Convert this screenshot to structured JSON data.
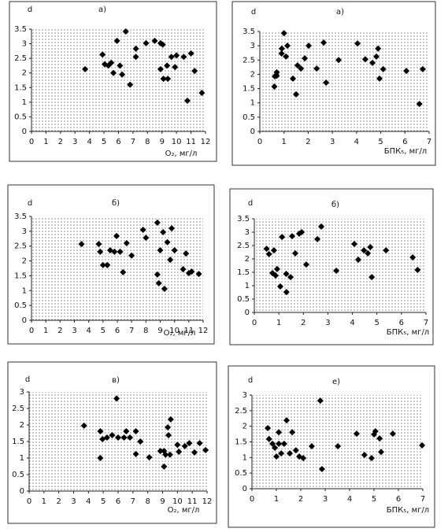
{
  "chart_data": [
    {
      "type": "scatter",
      "title": "а)",
      "ylabel": "d",
      "xlabel": "O₂, мг/л",
      "color": "#000000",
      "x": [
        3.7,
        4.9,
        5.05,
        5.3,
        5.5,
        5.65,
        5.9,
        6.1,
        6.25,
        6.5,
        6.8,
        7.2,
        7.2,
        7.9,
        8.5,
        8.9,
        9.05,
        8.9,
        9.1,
        9.4,
        9.35,
        9.65,
        9.9,
        10.0,
        10.5,
        11.0,
        11.25,
        10.75,
        11.75
      ],
      "values": [
        2.13,
        2.63,
        2.3,
        2.25,
        2.35,
        2.0,
        3.1,
        2.25,
        1.95,
        3.42,
        1.6,
        2.83,
        2.55,
        3.02,
        3.1,
        3.02,
        2.97,
        2.13,
        1.8,
        1.8,
        2.25,
        2.55,
        2.2,
        2.6,
        2.55,
        2.67,
        2.07,
        1.05,
        1.32
      ],
      "xlim": [
        0,
        12
      ],
      "ylim": [
        0,
        3.5
      ],
      "xticks": [
        0,
        1,
        2,
        3,
        4,
        5,
        6,
        7,
        8,
        9,
        10,
        11,
        12
      ],
      "yticks": [
        0,
        0.5,
        1,
        1.5,
        2,
        2.5,
        3,
        3.5
      ]
    },
    {
      "type": "scatter",
      "title": "а)",
      "ylabel": "d",
      "xlabel": "БПК₅, мг/л",
      "color": "#000000",
      "x": [
        0.6,
        0.62,
        0.7,
        0.7,
        0.9,
        0.91,
        1.0,
        1.08,
        1.14,
        1.37,
        1.5,
        1.56,
        1.7,
        1.86,
        2.02,
        2.35,
        2.64,
        2.74,
        3.26,
        4.04,
        4.36,
        4.66,
        4.82,
        4.89,
        4.95,
        5.1,
        6.06,
        6.6,
        6.74
      ],
      "values": [
        1.57,
        1.93,
        2.07,
        1.95,
        2.73,
        2.9,
        3.44,
        2.62,
        3.0,
        1.85,
        1.3,
        2.31,
        2.2,
        2.56,
        3.0,
        2.2,
        3.11,
        1.71,
        2.5,
        3.08,
        2.53,
        2.4,
        2.62,
        2.9,
        1.85,
        2.18,
        2.12,
        0.96,
        2.18
      ],
      "xlim": [
        0,
        7
      ],
      "ylim": [
        0,
        3.5
      ],
      "xticks": [
        0,
        1,
        2,
        3,
        4,
        5,
        6,
        7
      ],
      "yticks": [
        0,
        0.5,
        1,
        1.5,
        2,
        2.5,
        3,
        3.5
      ]
    },
    {
      "type": "scatter",
      "title": "б)",
      "ylabel": "d",
      "xlabel": "O₂, мг/л",
      "color": "#000000",
      "x": [
        3.5,
        4.7,
        4.8,
        5.0,
        5.3,
        5.5,
        5.8,
        5.95,
        6.2,
        6.4,
        6.65,
        7.0,
        7.8,
        8.0,
        8.8,
        8.8,
        8.9,
        9.3,
        9.0,
        9.2,
        9.5,
        9.8,
        9.7,
        10.0,
        10.6,
        10.8,
        11.0,
        11.2,
        11.7
      ],
      "values": [
        2.57,
        2.57,
        2.31,
        1.86,
        1.86,
        2.36,
        2.31,
        2.84,
        2.31,
        1.62,
        2.6,
        2.18,
        3.05,
        2.78,
        3.29,
        1.54,
        1.25,
        1.06,
        2.36,
        2.97,
        2.63,
        3.1,
        2.04,
        2.36,
        1.72,
        2.25,
        1.59,
        1.64,
        1.56
      ],
      "xlim": [
        0,
        12
      ],
      "ylim": [
        0,
        3.5
      ],
      "xticks": [
        0,
        1,
        2,
        3,
        4,
        5,
        6,
        7,
        8,
        9,
        10,
        11,
        12
      ],
      "yticks": [
        0,
        0.5,
        1,
        1.5,
        2,
        2.5,
        3,
        3.5
      ]
    },
    {
      "type": "scatter",
      "title": "б)",
      "ylabel": "d",
      "xlabel": "БПК₅, мг/л",
      "color": "#000000",
      "x": [
        0.5,
        0.6,
        0.74,
        0.8,
        0.87,
        0.93,
        1.06,
        1.13,
        1.3,
        1.31,
        1.48,
        1.54,
        1.67,
        1.83,
        1.93,
        2.12,
        2.57,
        2.73,
        3.34,
        4.08,
        4.24,
        4.47,
        4.63,
        4.73,
        4.79,
        5.37,
        6.46,
        6.66
      ],
      "values": [
        2.38,
        2.18,
        1.47,
        2.32,
        1.38,
        1.62,
        0.97,
        2.82,
        1.44,
        0.76,
        1.32,
        2.85,
        2.21,
        2.94,
        3.0,
        1.79,
        2.74,
        3.21,
        1.56,
        2.56,
        1.97,
        2.32,
        2.21,
        2.44,
        1.32,
        2.32,
        2.06,
        1.59
      ],
      "xlim": [
        0,
        7
      ],
      "ylim": [
        0,
        3.5
      ],
      "xticks": [
        0,
        1,
        2,
        3,
        4,
        5,
        6,
        7
      ],
      "yticks": [
        0,
        0.5,
        1,
        1.5,
        2,
        2.5,
        3,
        3.5
      ]
    },
    {
      "type": "scatter",
      "title": "в)",
      "ylabel": "d",
      "xlabel": "O₂, мг/л",
      "color": "#000000",
      "x": [
        3.7,
        4.8,
        4.95,
        4.8,
        5.25,
        5.6,
        5.9,
        6.0,
        6.4,
        6.55,
        6.8,
        7.2,
        7.2,
        7.5,
        8.1,
        8.85,
        9.1,
        9.1,
        9.2,
        9.35,
        9.4,
        9.5,
        9.55,
        10.0,
        10.1,
        10.5,
        10.8,
        11.15,
        11.5,
        11.9
      ],
      "values": [
        1.98,
        1.81,
        1.57,
        1.0,
        1.62,
        1.69,
        2.8,
        1.62,
        1.62,
        1.81,
        1.62,
        1.81,
        1.12,
        1.5,
        1.02,
        1.21,
        0.74,
        1.21,
        1.1,
        1.93,
        1.69,
        1.1,
        2.17,
        1.4,
        1.19,
        1.36,
        1.45,
        1.17,
        1.45,
        1.24
      ],
      "xlim": [
        0,
        12
      ],
      "ylim": [
        0,
        3
      ],
      "xticks": [
        0,
        1,
        2,
        3,
        4,
        5,
        6,
        7,
        8,
        9,
        10,
        11,
        12
      ],
      "yticks": [
        0,
        0.5,
        1,
        1.5,
        2,
        2.5,
        3
      ]
    },
    {
      "type": "scatter",
      "title": "е)",
      "ylabel": "d",
      "xlabel": "БПК₅, мг/л",
      "color": "#000000",
      "x": [
        0.65,
        0.7,
        0.84,
        0.94,
        1.0,
        1.1,
        1.1,
        1.2,
        1.32,
        1.42,
        1.55,
        1.65,
        1.8,
        1.94,
        2.1,
        2.45,
        2.8,
        2.87,
        3.52,
        4.29,
        4.61,
        4.9,
        5.0,
        5.06,
        5.23,
        5.29,
        5.77,
        6.97
      ],
      "values": [
        1.94,
        1.59,
        1.44,
        1.31,
        1.03,
        1.81,
        1.44,
        1.13,
        1.44,
        2.19,
        1.13,
        1.81,
        1.23,
        1.03,
        0.98,
        1.36,
        2.82,
        0.63,
        1.36,
        1.76,
        1.08,
        0.98,
        1.74,
        1.84,
        1.61,
        1.18,
        1.76,
        1.39
      ],
      "xlim": [
        0,
        7
      ],
      "ylim": [
        0,
        3
      ],
      "xticks": [
        0,
        1,
        2,
        3,
        4,
        5,
        6,
        7
      ],
      "yticks": [
        0,
        0.5,
        1,
        1.5,
        2,
        2.5,
        3
      ]
    }
  ]
}
